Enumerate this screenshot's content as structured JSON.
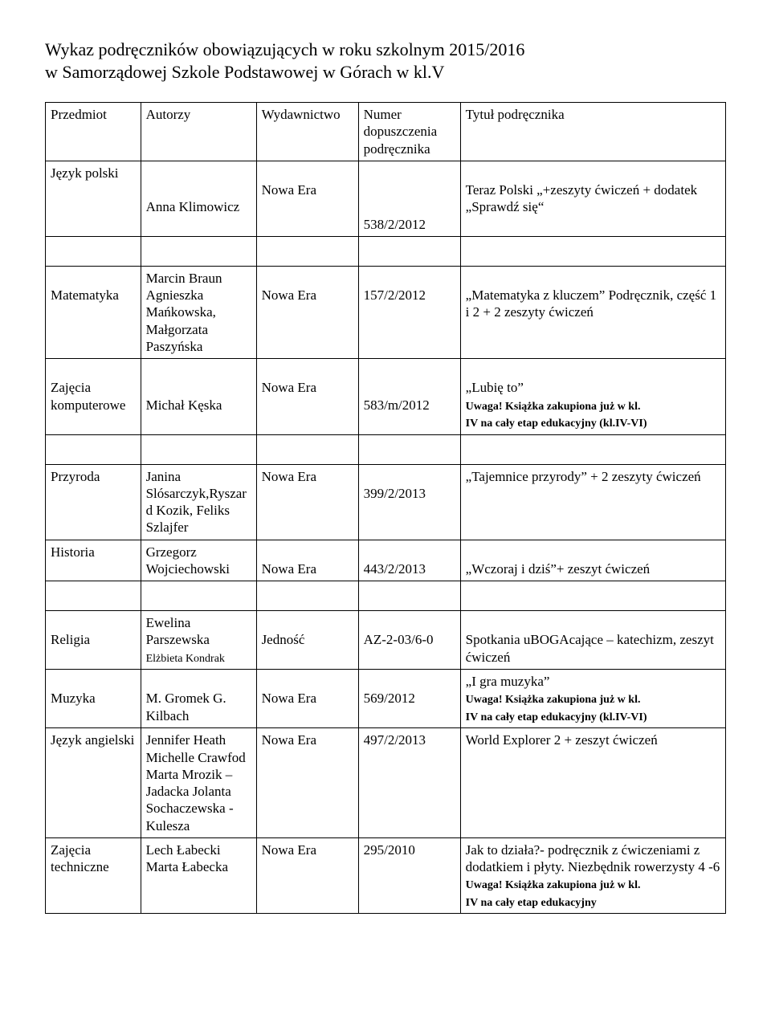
{
  "title_line1": "Wykaz podręczników obowiązujących w roku szkolnym 2015/2016",
  "title_line2": "w   Samorządowej Szkole Podstawowej w Górach w kl.V",
  "headers": {
    "przedmiot": "Przedmiot",
    "autorzy": "Autorzy",
    "wydawnictwo": "Wydawnictwo",
    "numer": "Numer dopuszczenia podręcznika",
    "tytul": "Tytuł podręcznika"
  },
  "rows": {
    "polski": {
      "przedmiot": "Język polski",
      "autorzy": "Anna Klimowicz",
      "wyd": "Nowa Era",
      "numer": "538/2/2012",
      "tytul": "Teraz Polski „+zeszyty ćwiczeń + dodatek „Sprawdź się“"
    },
    "matematyka": {
      "przedmiot": "Matematyka",
      "autorzy": "Marcin Braun Agnieszka Mańkowska, Małgorzata Paszyńska",
      "wyd": "Nowa Era",
      "numer": "157/2/2012",
      "tytul": "„Matematyka z kluczem” Podręcznik, część 1 i 2 + 2 zeszyty ćwiczeń"
    },
    "komputerowe": {
      "przedmiot": "Zajęcia komputerowe",
      "autorzy": "Michał Kęska",
      "wyd": "Nowa Era",
      "numer": "583/m/2012",
      "tytul_main": "„Lubię to”",
      "tytul_note1": "Uwaga! Książka zakupiona już w kl.",
      "tytul_note2": "IV na cały etap edukacyjny (kl.IV-VI)"
    },
    "przyroda": {
      "przedmiot": "Przyroda",
      "autorzy": "Janina Slósarczyk,Ryszard Kozik, Feliks Szlajfer",
      "wyd": "Nowa Era",
      "numer": "399/2/2013",
      "tytul": "„Tajemnice przyrody” + 2 zeszyty ćwiczeń"
    },
    "historia": {
      "przedmiot": "Historia",
      "autorzy": "Grzegorz Wojciechowski",
      "wyd": "Nowa Era",
      "numer": "443/2/2013",
      "tytul": "„Wczoraj i dziś”+ zeszyt ćwiczeń"
    },
    "religia": {
      "przedmiot": "Religia",
      "autor_main": "Ewelina Parszewska",
      "autor_small": "Elżbieta Kondrak",
      "wyd": "Jedność",
      "numer": "AZ-2-03/6-0",
      "tytul": "Spotkania uBOGAcające – katechizm, zeszyt ćwiczeń"
    },
    "muzyka": {
      "przedmiot": "Muzyka",
      "autorzy": "M. Gromek G. Kilbach",
      "wyd": "Nowa Era",
      "numer": "569/2012",
      "tytul_main": "„I gra muzyka”",
      "tytul_note1": "Uwaga! Książka zakupiona już w kl.",
      "tytul_note2": "IV na cały etap edukacyjny (kl.IV-VI)"
    },
    "angielski": {
      "przedmiot": "Język angielski",
      "autorzy": "Jennifer Heath Michelle Crawfod Marta Mrozik – Jadacka Jolanta Sochaczewska -Kulesza",
      "wyd": "Nowa Era",
      "numer": "497/2/2013",
      "tytul": "World Explorer 2 + zeszyt ćwiczeń"
    },
    "techniczne": {
      "przedmiot": "Zajęcia techniczne",
      "autorzy": "Lech Łabecki Marta Łabecka",
      "wyd": "Nowa Era",
      "numer": "295/2010",
      "tytul_main": "Jak to działa?- podręcznik z ćwiczeniami z dodatkiem i płyty. Niezbędnik rowerzysty 4 -6",
      "tytul_note1": "Uwaga! Książka zakupiona już w kl.",
      "tytul_note2": "IV na cały etap edukacyjny"
    }
  }
}
